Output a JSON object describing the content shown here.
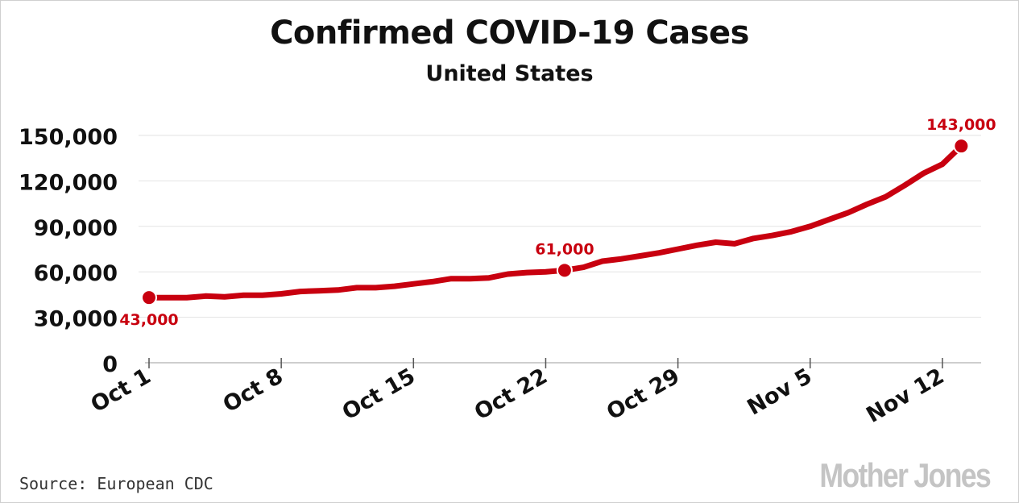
{
  "chart_data": {
    "type": "line",
    "title": "Confirmed COVID-19 Cases",
    "subtitle": "United States",
    "xlabel": "",
    "ylabel": "",
    "x": [
      "Oct 1",
      "Oct 2",
      "Oct 3",
      "Oct 4",
      "Oct 5",
      "Oct 6",
      "Oct 7",
      "Oct 8",
      "Oct 9",
      "Oct 10",
      "Oct 11",
      "Oct 12",
      "Oct 13",
      "Oct 14",
      "Oct 15",
      "Oct 16",
      "Oct 17",
      "Oct 18",
      "Oct 19",
      "Oct 20",
      "Oct 21",
      "Oct 22",
      "Oct 23",
      "Oct 24",
      "Oct 25",
      "Oct 26",
      "Oct 27",
      "Oct 28",
      "Oct 29",
      "Oct 30",
      "Oct 31",
      "Nov 1",
      "Nov 2",
      "Nov 3",
      "Nov 4",
      "Nov 5",
      "Nov 6",
      "Nov 7",
      "Nov 8",
      "Nov 9",
      "Nov 10",
      "Nov 11",
      "Nov 12",
      "Nov 13"
    ],
    "series": [
      {
        "color": "#c8000f",
        "values": [
          43000,
          43000,
          43000,
          44000,
          43500,
          44500,
          44500,
          45500,
          47000,
          47500,
          48000,
          49500,
          49500,
          50500,
          52000,
          53500,
          55500,
          55500,
          56000,
          58500,
          59500,
          60000,
          61000,
          63000,
          67000,
          68500,
          70500,
          72500,
          75000,
          77500,
          79500,
          78500,
          82000,
          84000,
          86500,
          90000,
          94500,
          99000,
          104500,
          109500,
          117000,
          125000,
          131000,
          143000
        ]
      }
    ],
    "yticks": [
      "0",
      "30,000",
      "60,000",
      "90,000",
      "120,000",
      "150,000"
    ],
    "ytick_values": [
      0,
      30000,
      60000,
      90000,
      120000,
      150000
    ],
    "xticks": [
      "Oct 1",
      "Oct 8",
      "Oct 15",
      "Oct 22",
      "Oct 29",
      "Nov 5",
      "Nov 12"
    ],
    "xtick_index": [
      0,
      7,
      14,
      21,
      28,
      35,
      42
    ],
    "ylim": [
      0,
      150000
    ],
    "grid": true,
    "annotations": [
      {
        "index": 0,
        "text": "43,000",
        "placement": "below"
      },
      {
        "index": 22,
        "text": "61,000",
        "placement": "above"
      },
      {
        "index": 43,
        "text": "143,000",
        "placement": "above"
      }
    ]
  },
  "source": "Source: European CDC",
  "brand": "Mother Jones"
}
